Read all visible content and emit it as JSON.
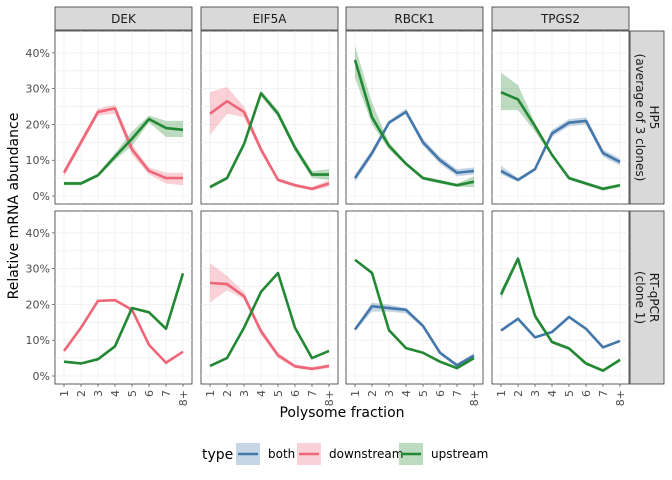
{
  "chart_data": {
    "type": "line",
    "xlabel": "Polysome fraction",
    "ylabel": "Relative mRNA abundance",
    "x_ticks": [
      "1",
      "2",
      "3",
      "4",
      "5",
      "6",
      "7",
      "8+"
    ],
    "y_ticks": [
      "0%",
      "10%",
      "20%",
      "30%",
      "40%"
    ],
    "ylim": [
      0,
      0.45
    ],
    "grid": true,
    "legend": {
      "title": "type",
      "position": "bottom",
      "entries": [
        "both",
        "downstream",
        "upstream"
      ]
    },
    "colors": {
      "both": "#4477aa",
      "downstream": "#ee6677",
      "upstream": "#228833"
    },
    "columns": [
      "DEK",
      "EIF5A",
      "RBCK1",
      "TPGS2"
    ],
    "rows": [
      "HP5\n(average of 3 clones)",
      "RT-qPCR\n(clone 1)"
    ],
    "panels": [
      {
        "row": 0,
        "col": 0,
        "series": [
          {
            "type": "downstream",
            "values": [
              0.065,
              0.15,
              0.235,
              0.245,
              0.13,
              0.07,
              0.05,
              0.05
            ],
            "ribbon": [
              [
                0.055,
                0.075
              ],
              [
                0.14,
                0.16
              ],
              [
                0.225,
                0.245
              ],
              [
                0.23,
                0.255
              ],
              [
                0.115,
                0.145
              ],
              [
                0.06,
                0.08
              ],
              [
                0.035,
                0.065
              ],
              [
                0.03,
                0.065
              ]
            ]
          },
          {
            "type": "upstream",
            "values": [
              0.035,
              0.035,
              0.058,
              0.11,
              0.16,
              0.215,
              0.19,
              0.185
            ],
            "ribbon": [
              [
                0.03,
                0.04
              ],
              [
                0.03,
                0.04
              ],
              [
                0.053,
                0.063
              ],
              [
                0.1,
                0.12
              ],
              [
                0.14,
                0.18
              ],
              [
                0.205,
                0.225
              ],
              [
                0.165,
                0.21
              ],
              [
                0.165,
                0.21
              ]
            ]
          }
        ]
      },
      {
        "row": 0,
        "col": 1,
        "series": [
          {
            "type": "downstream",
            "values": [
              0.23,
              0.265,
              0.235,
              0.13,
              0.045,
              0.03,
              0.02,
              0.035
            ],
            "ribbon": [
              [
                0.17,
                0.29
              ],
              [
                0.23,
                0.305
              ],
              [
                0.22,
                0.25
              ],
              [
                0.12,
                0.14
              ],
              [
                0.04,
                0.05
              ],
              [
                0.025,
                0.035
              ],
              [
                0.015,
                0.025
              ],
              [
                0.025,
                0.045
              ]
            ]
          },
          {
            "type": "upstream",
            "values": [
              0.025,
              0.05,
              0.145,
              0.287,
              0.23,
              0.135,
              0.06,
              0.06
            ],
            "ribbon": [
              [
                0.02,
                0.03
              ],
              [
                0.045,
                0.055
              ],
              [
                0.14,
                0.15
              ],
              [
                0.28,
                0.295
              ],
              [
                0.22,
                0.24
              ],
              [
                0.125,
                0.145
              ],
              [
                0.05,
                0.07
              ],
              [
                0.045,
                0.075
              ]
            ]
          }
        ]
      },
      {
        "row": 0,
        "col": 2,
        "series": [
          {
            "type": "both",
            "values": [
              0.05,
              0.12,
              0.205,
              0.235,
              0.15,
              0.1,
              0.065,
              0.07
            ],
            "ribbon": [
              [
                0.04,
                0.06
              ],
              [
                0.11,
                0.13
              ],
              [
                0.2,
                0.21
              ],
              [
                0.23,
                0.245
              ],
              [
                0.14,
                0.16
              ],
              [
                0.09,
                0.11
              ],
              [
                0.055,
                0.075
              ],
              [
                0.06,
                0.08
              ]
            ]
          },
          {
            "type": "upstream",
            "values": [
              0.38,
              0.22,
              0.14,
              0.09,
              0.05,
              0.04,
              0.03,
              0.04
            ],
            "ribbon": [
              [
                0.33,
                0.42
              ],
              [
                0.2,
                0.26
              ],
              [
                0.13,
                0.15
              ],
              [
                0.085,
                0.095
              ],
              [
                0.045,
                0.055
              ],
              [
                0.035,
                0.045
              ],
              [
                0.025,
                0.035
              ],
              [
                0.025,
                0.055
              ]
            ]
          }
        ]
      },
      {
        "row": 0,
        "col": 3,
        "series": [
          {
            "type": "both",
            "values": [
              0.07,
              0.045,
              0.075,
              0.175,
              0.205,
              0.21,
              0.12,
              0.095
            ],
            "ribbon": [
              [
                0.06,
                0.085
              ],
              [
                0.04,
                0.05
              ],
              [
                0.07,
                0.08
              ],
              [
                0.165,
                0.185
              ],
              [
                0.195,
                0.215
              ],
              [
                0.2,
                0.22
              ],
              [
                0.11,
                0.13
              ],
              [
                0.085,
                0.105
              ]
            ]
          },
          {
            "type": "upstream",
            "values": [
              0.29,
              0.27,
              0.195,
              0.115,
              0.05,
              0.035,
              0.02,
              0.03
            ],
            "ribbon": [
              [
                0.24,
                0.345
              ],
              [
                0.24,
                0.31
              ],
              [
                0.18,
                0.205
              ],
              [
                0.11,
                0.12
              ],
              [
                0.045,
                0.055
              ],
              [
                0.03,
                0.04
              ],
              [
                0.015,
                0.025
              ],
              [
                0.025,
                0.035
              ]
            ]
          }
        ]
      },
      {
        "row": 1,
        "col": 0,
        "series": [
          {
            "type": "downstream",
            "values": [
              0.07,
              0.135,
              0.21,
              0.212,
              0.185,
              0.087,
              0.037,
              0.068
            ]
          },
          {
            "type": "upstream",
            "values": [
              0.04,
              0.035,
              0.047,
              0.083,
              0.19,
              0.178,
              0.132,
              0.287
            ]
          }
        ]
      },
      {
        "row": 1,
        "col": 1,
        "series": [
          {
            "type": "downstream",
            "values": [
              0.26,
              0.257,
              0.223,
              0.125,
              0.058,
              0.027,
              0.02,
              0.028
            ],
            "ribbon": [
              [
                0.205,
                0.315
              ],
              [
                0.24,
                0.28
              ],
              [
                0.215,
                0.235
              ],
              [
                0.115,
                0.135
              ],
              [
                0.05,
                0.065
              ],
              [
                0.022,
                0.032
              ],
              [
                0.015,
                0.025
              ],
              [
                0.022,
                0.034
              ]
            ]
          },
          {
            "type": "upstream",
            "values": [
              0.028,
              0.05,
              0.135,
              0.235,
              0.288,
              0.135,
              0.05,
              0.07
            ]
          }
        ]
      },
      {
        "row": 1,
        "col": 2,
        "series": [
          {
            "type": "both",
            "values": [
              0.13,
              0.195,
              0.19,
              0.185,
              0.14,
              0.065,
              0.03,
              0.057
            ],
            "ribbon": [
              [
                0.125,
                0.135
              ],
              [
                0.18,
                0.205
              ],
              [
                0.18,
                0.2
              ],
              [
                0.175,
                0.19
              ],
              [
                0.135,
                0.145
              ],
              [
                0.06,
                0.07
              ],
              [
                0.025,
                0.035
              ],
              [
                0.05,
                0.064
              ]
            ]
          },
          {
            "type": "upstream",
            "values": [
              0.325,
              0.288,
              0.128,
              0.078,
              0.065,
              0.04,
              0.022,
              0.05
            ]
          }
        ]
      },
      {
        "row": 1,
        "col": 3,
        "series": [
          {
            "type": "both",
            "values": [
              0.127,
              0.16,
              0.108,
              0.123,
              0.165,
              0.132,
              0.08,
              0.098
            ]
          },
          {
            "type": "upstream",
            "values": [
              0.228,
              0.328,
              0.168,
              0.095,
              0.077,
              0.035,
              0.015,
              0.045
            ],
            "ribbon": [
              [
                0.215,
                0.24
              ],
              [
                0.32,
                0.335
              ],
              [
                0.16,
                0.175
              ],
              [
                0.09,
                0.1
              ],
              [
                0.072,
                0.082
              ],
              [
                0.03,
                0.04
              ],
              [
                0.012,
                0.018
              ],
              [
                0.04,
                0.05
              ]
            ]
          }
        ]
      }
    ]
  }
}
